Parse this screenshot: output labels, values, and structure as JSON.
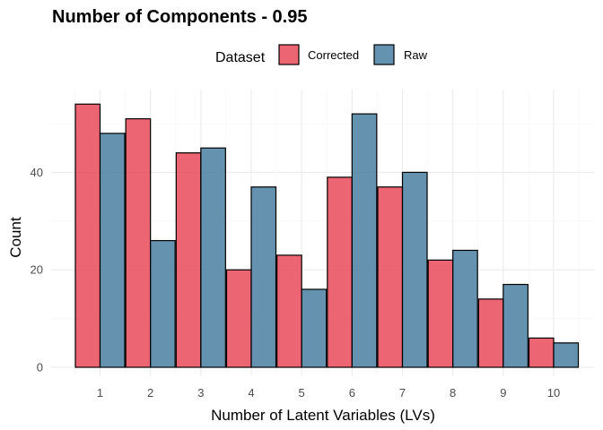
{
  "chart_data": {
    "type": "bar",
    "title": "Number of Components - 0.95",
    "xlabel": "Number of Latent Variables (LVs)",
    "ylabel": "Count",
    "categories": [
      "1",
      "2",
      "3",
      "4",
      "5",
      "6",
      "7",
      "8",
      "9",
      "10"
    ],
    "series": [
      {
        "name": "Corrected",
        "color": "#E84A5B",
        "values": [
          54,
          51,
          44,
          20,
          23,
          39,
          37,
          22,
          14,
          6
        ]
      },
      {
        "name": "Raw",
        "color": "#4A7FA0",
        "values": [
          48,
          26,
          45,
          37,
          16,
          52,
          40,
          24,
          17,
          5
        ]
      }
    ],
    "legend": {
      "title": "Dataset",
      "position": "top"
    },
    "ylim": [
      0,
      56
    ],
    "yticks": [
      0,
      20,
      40
    ],
    "grid": true
  }
}
